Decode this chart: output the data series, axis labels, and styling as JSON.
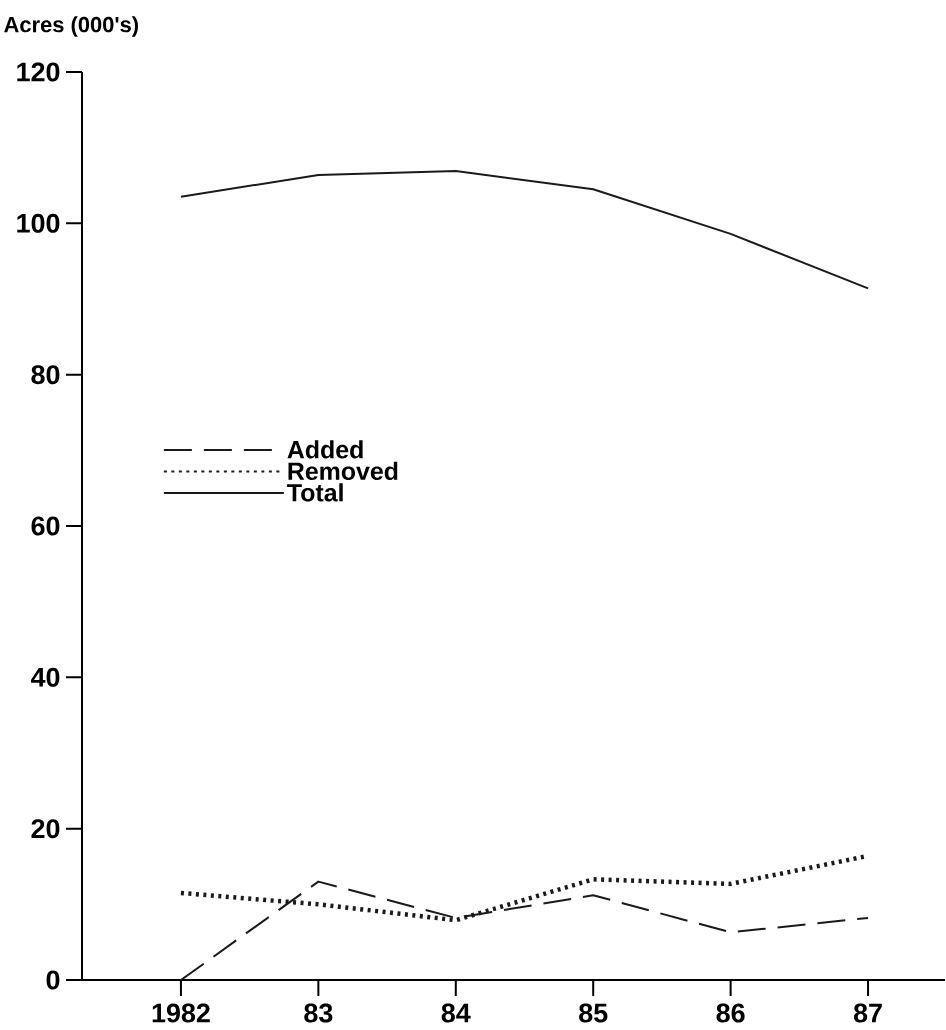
{
  "chart_data": {
    "type": "line",
    "ylabel": "Acres (000's)",
    "categories": [
      "1982",
      "83",
      "84",
      "85",
      "86",
      "87"
    ],
    "series": [
      {
        "name": "Added",
        "color": "#1a1a1a",
        "line_style": "dashed",
        "values": [
          0,
          13.0,
          8.2,
          11.2,
          6.3,
          8.2
        ]
      },
      {
        "name": "Removed",
        "color": "#1a1a1a",
        "line_style": "dotted",
        "values": [
          11.5,
          10.0,
          7.9,
          13.3,
          12.7,
          16.4
        ]
      },
      {
        "name": "Total",
        "color": "#1a1a1a",
        "line_style": "solid",
        "values": [
          103.5,
          106.4,
          106.9,
          104.5,
          98.6,
          91.4
        ]
      }
    ],
    "ylim": [
      0,
      120
    ],
    "yticks": [
      0,
      20,
      40,
      60,
      80,
      100,
      120
    ],
    "grid": false,
    "legend": "left"
  }
}
